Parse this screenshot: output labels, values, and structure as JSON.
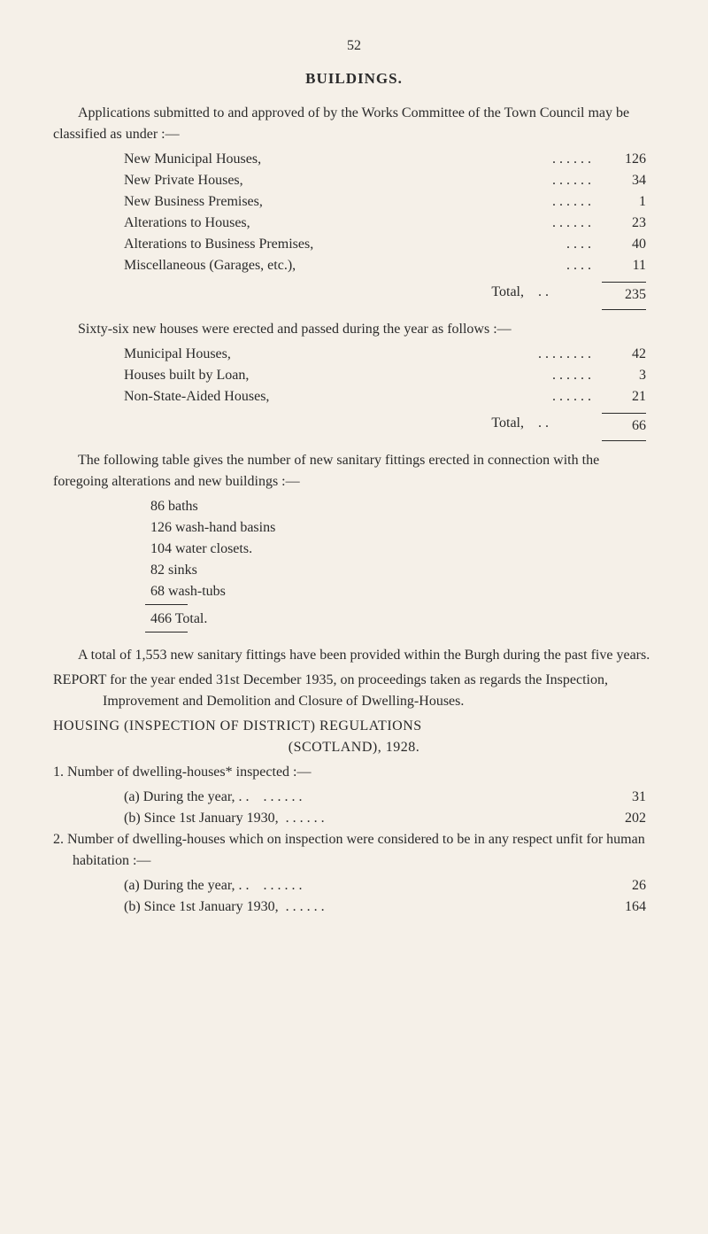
{
  "page_number": "52",
  "title": "BUILDINGS.",
  "intro": "Applications submitted to and approved of by the Works Committee of the Town Council may be classified as under :—",
  "class_rows": [
    {
      "label": "New Municipal Houses,",
      "dots": ". .        . .        . .",
      "val": "126"
    },
    {
      "label": "New Private Houses,",
      "dots": ". .        . .        . .",
      "val": "34"
    },
    {
      "label": "New Business Premises,",
      "dots": ". .        . .        . .",
      "val": "1"
    },
    {
      "label": "Alterations to Houses,",
      "dots": ". .        . .        . .",
      "val": "23"
    },
    {
      "label": "Alterations to Business Premises,",
      "dots": ". .        . .",
      "val": "40"
    },
    {
      "label": "Miscellaneous (Garages, etc.),",
      "dots": ". .        . .",
      "val": "11"
    }
  ],
  "class_total_label": "Total,",
  "class_total_dots": ". .",
  "class_total_val": "235",
  "sixty_intro": "Sixty-six new houses were erected and passed during the year as follows :—",
  "sixty_rows": [
    {
      "label": "Municipal Houses,",
      "dots": ". .        . .        . .        . .",
      "val": "42"
    },
    {
      "label": "Houses built by Loan,",
      "dots": ". .        . .        . .",
      "val": "3"
    },
    {
      "label": "Non-State-Aided Houses,",
      "dots": ". .        . .        . .",
      "val": "21"
    }
  ],
  "sixty_total_label": "Total,",
  "sixty_total_dots": ". .",
  "sixty_total_val": "66",
  "fittings_intro": "The following table gives the number of new sanitary fittings erected in connection with the foregoing alterations and new buildings :—",
  "fittings_list": [
    "86 baths",
    "126 wash-hand basins",
    "104 water closets.",
    "82 sinks",
    "68 wash-tubs"
  ],
  "fittings_total": "466 Total.",
  "total_para": "A total of 1,553 new sanitary fittings have been provided within the Burgh during the past five years.",
  "report_para": "REPORT for the year ended 31st December 1935, on proceedings taken as regards the Inspection, Improvement and Demolition and Closure of Dwelling-Houses.",
  "housing_title1": "HOUSING (INSPECTION OF DISTRICT) REGULATIONS",
  "housing_title2": "(SCOTLAND), 1928.",
  "item1_head": "1. Number of dwelling-houses* inspected :—",
  "item1a": {
    "label": "(a) During the year,  . .",
    "dots": ". .        . .        . .",
    "val": "31"
  },
  "item1b": {
    "label": "(b) Since 1st January 1930,",
    "dots": ". .        . .        . .",
    "val": "202"
  },
  "item2_head": "2. Number of dwelling-houses which on inspection were considered to be in any respect unfit for human habitation :—",
  "item2a": {
    "label": "(a) During the year,  . .",
    "dots": ". .        . .        . .",
    "val": "26"
  },
  "item2b": {
    "label": "(b) Since 1st January 1930,",
    "dots": ". .        . .        . .",
    "val": "164"
  }
}
